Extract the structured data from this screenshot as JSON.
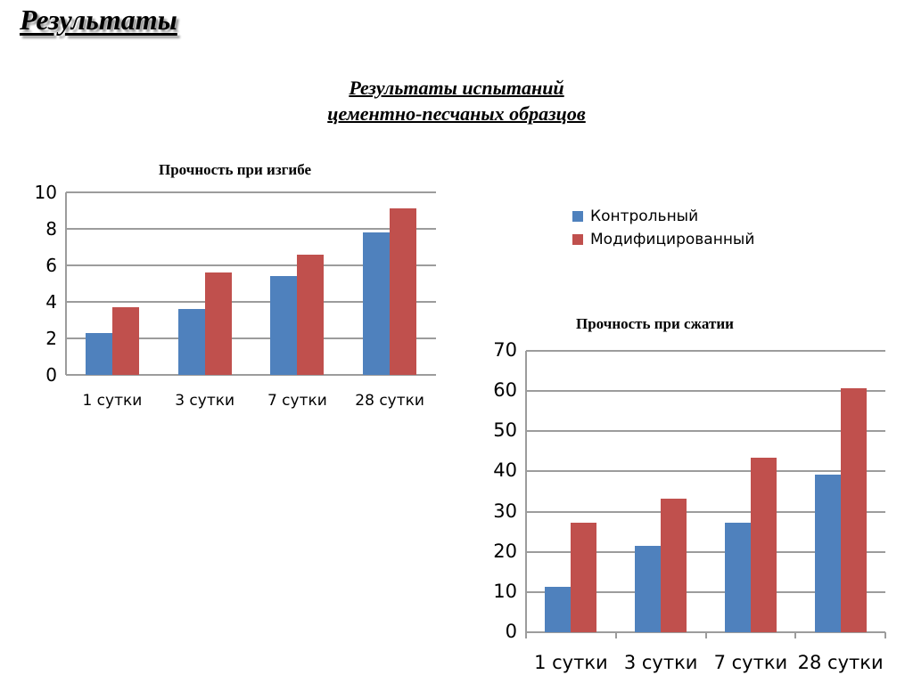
{
  "slide": {
    "title": "Результаты",
    "subtitle_line1": "Результаты испытаний",
    "subtitle_line2": "цементно-песчаных образцов"
  },
  "legend": {
    "items": [
      {
        "label": "Контрольный",
        "color": "#4f81bd"
      },
      {
        "label": "Модифицированный",
        "color": "#c0504d"
      }
    ]
  },
  "chart_data": [
    {
      "type": "bar",
      "title": "Прочность при изгибе",
      "xlabel": "",
      "ylabel": "",
      "categories": [
        "1 сутки",
        "3 сутки",
        "7 сутки",
        "28 сутки"
      ],
      "series": [
        {
          "name": "Контрольный",
          "color": "#4f81bd",
          "values": [
            2.3,
            3.6,
            5.4,
            7.8
          ]
        },
        {
          "name": "Модифицированный",
          "color": "#c0504d",
          "values": [
            3.7,
            5.6,
            6.6,
            9.1
          ]
        }
      ],
      "ylim": [
        0,
        10
      ],
      "yticks": [
        0,
        2,
        4,
        6,
        8,
        10
      ],
      "grid": true,
      "legend_position": "right (shared)"
    },
    {
      "type": "bar",
      "title": "Прочность при сжатии",
      "xlabel": "",
      "ylabel": "",
      "categories": [
        "1 сутки",
        "3 сутки",
        "7 сутки",
        "28 сутки"
      ],
      "series": [
        {
          "name": "Контрольный",
          "color": "#4f81bd",
          "values": [
            11.4,
            21.4,
            27.3,
            39.1
          ]
        },
        {
          "name": "Модифицированный",
          "color": "#c0504d",
          "values": [
            27.2,
            33.3,
            43.4,
            60.8
          ]
        }
      ],
      "ylim": [
        0,
        70
      ],
      "yticks": [
        0,
        10,
        20,
        30,
        40,
        50,
        60,
        70
      ],
      "grid": true,
      "legend_position": "right (shared)"
    }
  ]
}
